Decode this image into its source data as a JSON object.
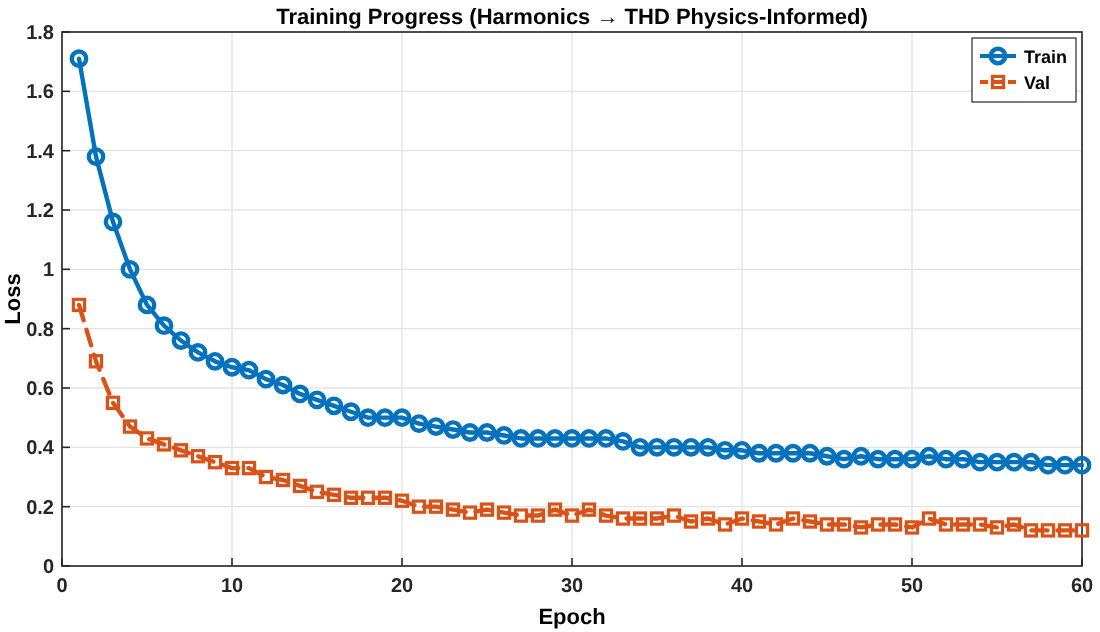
{
  "chart_data": {
    "type": "line",
    "title": "Training Progress (Harmonics → THD Physics-Informed)",
    "xlabel": "Epoch",
    "ylabel": "Loss",
    "x": [
      1,
      2,
      3,
      4,
      5,
      6,
      7,
      8,
      9,
      10,
      11,
      12,
      13,
      14,
      15,
      16,
      17,
      18,
      19,
      20,
      21,
      22,
      23,
      24,
      25,
      26,
      27,
      28,
      29,
      30,
      31,
      32,
      33,
      34,
      35,
      36,
      37,
      38,
      39,
      40,
      41,
      42,
      43,
      44,
      45,
      46,
      47,
      48,
      49,
      50,
      51,
      52,
      53,
      54,
      55,
      56,
      57,
      58,
      59,
      60
    ],
    "series": [
      {
        "name": "Train",
        "color": "#0072bd",
        "marker": "circle",
        "line_style": "solid",
        "values": [
          1.71,
          1.38,
          1.16,
          1.0,
          0.88,
          0.81,
          0.76,
          0.72,
          0.69,
          0.67,
          0.66,
          0.63,
          0.61,
          0.58,
          0.56,
          0.54,
          0.52,
          0.5,
          0.5,
          0.5,
          0.48,
          0.47,
          0.46,
          0.45,
          0.45,
          0.44,
          0.43,
          0.43,
          0.43,
          0.43,
          0.43,
          0.43,
          0.42,
          0.4,
          0.4,
          0.4,
          0.4,
          0.4,
          0.39,
          0.39,
          0.38,
          0.38,
          0.38,
          0.38,
          0.37,
          0.36,
          0.37,
          0.36,
          0.36,
          0.36,
          0.37,
          0.36,
          0.36,
          0.35,
          0.35,
          0.35,
          0.35,
          0.34,
          0.34,
          0.34
        ]
      },
      {
        "name": "Val",
        "color": "#d95319",
        "marker": "square",
        "line_style": "dashed",
        "values": [
          0.88,
          0.69,
          0.55,
          0.47,
          0.43,
          0.41,
          0.39,
          0.37,
          0.35,
          0.33,
          0.33,
          0.3,
          0.29,
          0.27,
          0.25,
          0.24,
          0.23,
          0.23,
          0.23,
          0.22,
          0.2,
          0.2,
          0.19,
          0.18,
          0.19,
          0.18,
          0.17,
          0.17,
          0.19,
          0.17,
          0.19,
          0.17,
          0.16,
          0.16,
          0.16,
          0.17,
          0.15,
          0.16,
          0.14,
          0.16,
          0.15,
          0.14,
          0.16,
          0.15,
          0.14,
          0.14,
          0.13,
          0.14,
          0.14,
          0.13,
          0.16,
          0.14,
          0.14,
          0.14,
          0.13,
          0.14,
          0.12,
          0.12,
          0.12,
          0.12
        ]
      }
    ],
    "xlim": [
      0,
      60
    ],
    "xticks": [
      0,
      10,
      20,
      30,
      40,
      50,
      60
    ],
    "ylim": [
      0,
      1.8
    ],
    "yticks": [
      0,
      0.2,
      0.4,
      0.6,
      0.8,
      1,
      1.2,
      1.4,
      1.6,
      1.8
    ],
    "grid": true,
    "legend": "top right"
  }
}
